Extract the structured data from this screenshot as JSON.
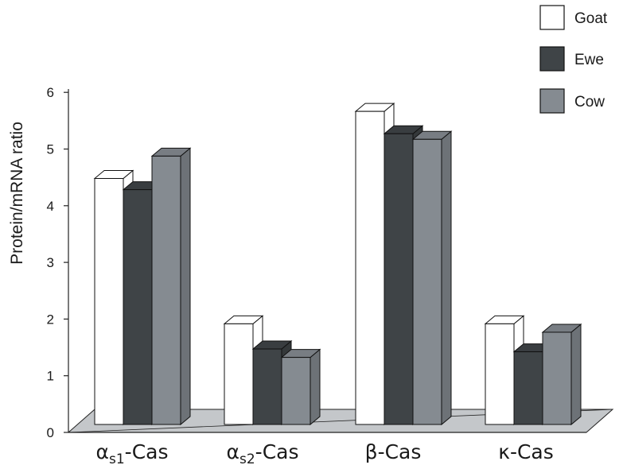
{
  "chart_data": {
    "type": "bar",
    "style": "3d-clustered",
    "categories": [
      {
        "greek": "α",
        "sub": "s1",
        "suffix": "-Cas"
      },
      {
        "greek": "α",
        "sub": "s2",
        "suffix": "-Cas"
      },
      {
        "greek": "β",
        "sub": "",
        "suffix": "-Cas"
      },
      {
        "greek": "κ",
        "sub": "",
        "suffix": "-Cas"
      }
    ],
    "series": [
      {
        "name": "Goat",
        "color": "#ffffff",
        "values": [
          4.4,
          1.8,
          5.6,
          1.8
        ]
      },
      {
        "name": "Ewe",
        "color": "#3f4447",
        "values": [
          4.2,
          1.35,
          5.2,
          1.3
        ]
      },
      {
        "name": "Cow",
        "color": "#858b91",
        "values": [
          4.8,
          1.2,
          5.1,
          1.65
        ]
      }
    ],
    "ylabel": "Protein/mRNA ratio",
    "xlabel": "",
    "ylim": [
      0,
      6
    ],
    "yticks": [
      "0",
      "1",
      "2",
      "3",
      "4",
      "5",
      "6"
    ],
    "legend_position": "top-right",
    "grid": false
  }
}
